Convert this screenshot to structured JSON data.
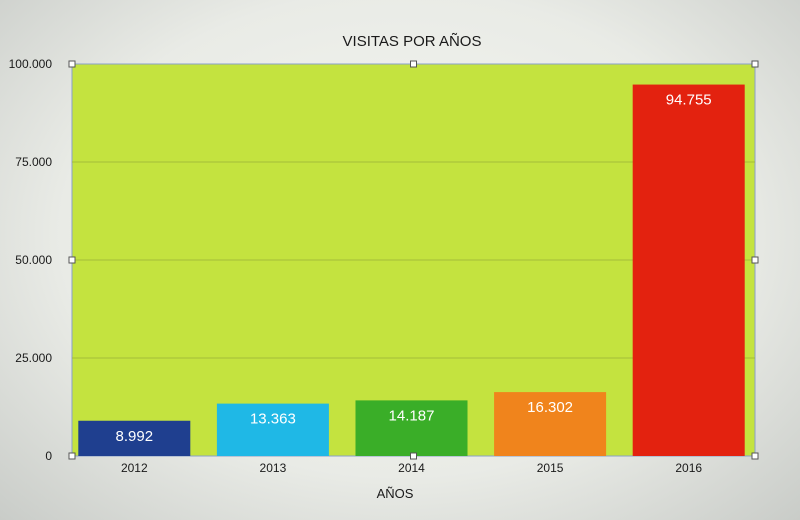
{
  "chart_data": {
    "type": "bar",
    "title": "VISITAS POR AÑOS",
    "xlabel": "AÑOS",
    "ylabel": "",
    "categories": [
      "2012",
      "2013",
      "2014",
      "2015",
      "2016"
    ],
    "values": [
      8992,
      13363,
      14187,
      16302,
      94755
    ],
    "value_labels": [
      "8.992",
      "13.363",
      "14.187",
      "16.302",
      "94.755"
    ],
    "colors": [
      "#1f3f8f",
      "#1fb8e6",
      "#3aae28",
      "#f0841c",
      "#e3220f"
    ],
    "plot_background": "#c4e33f",
    "ylim": [
      0,
      100000
    ],
    "yticks": [
      0,
      25000,
      50000,
      75000,
      100000
    ],
    "ytick_labels": [
      "0",
      "25.000",
      "50.000",
      "75.000",
      "100.000"
    ],
    "grid": true,
    "legend": "none"
  }
}
